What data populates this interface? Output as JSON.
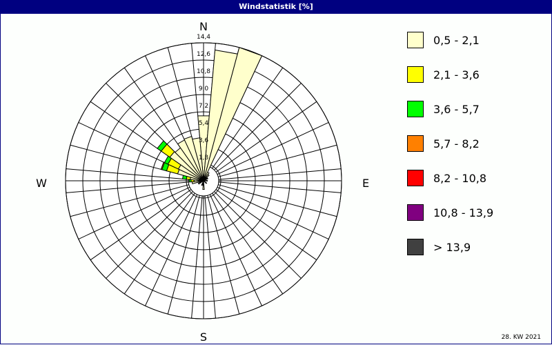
{
  "chart_data": {
    "type": "wind-rose",
    "title": "Windstatistik [%]",
    "footer": "28. KW 2021",
    "directions": [
      "N",
      "E",
      "S",
      "W"
    ],
    "radial_ticks": [
      "1,8",
      "3,6",
      "5,4",
      "7,2",
      "9,0",
      "10,8",
      "12,6",
      "14,4"
    ],
    "rmax": 14.4,
    "sector_width_deg": 10,
    "legend": [
      {
        "label": "0,5 - 2,1",
        "color": "#ffffcc"
      },
      {
        "label": "2,1 - 3,6",
        "color": "#ffff00"
      },
      {
        "label": "3,6 - 5,7",
        "color": "#00ff00"
      },
      {
        "label": "5,7 - 8,2",
        "color": "#ff8000"
      },
      {
        "label": "8,2 - 10,8",
        "color": "#ff0000"
      },
      {
        "label": "10,8 - 13,9",
        "color": "#800080"
      },
      {
        "label": " > 13,9",
        "color": "#404040"
      }
    ],
    "sectors": [
      {
        "dir": 0,
        "values": [
          6.8,
          0,
          0,
          0,
          0,
          0,
          0
        ]
      },
      {
        "dir": 10,
        "values": [
          13.7,
          0,
          0,
          0,
          0,
          0,
          0
        ]
      },
      {
        "dir": 20,
        "values": [
          14.4,
          0,
          0,
          0,
          0,
          0,
          0
        ]
      },
      {
        "dir": 30,
        "values": [
          1.0,
          0,
          0,
          0,
          0,
          0,
          0
        ]
      },
      {
        "dir": 40,
        "values": [
          0.8,
          0,
          0,
          0,
          0,
          0,
          0
        ]
      },
      {
        "dir": 60,
        "values": [
          0.5,
          0,
          0,
          0,
          0,
          0,
          0
        ]
      },
      {
        "dir": 90,
        "values": [
          0.4,
          0,
          0,
          0,
          0,
          0,
          0
        ]
      },
      {
        "dir": 130,
        "values": [
          0.4,
          0,
          0,
          0,
          0,
          0,
          0
        ]
      },
      {
        "dir": 180,
        "values": [
          0.9,
          0,
          0,
          0,
          0,
          0,
          0
        ]
      },
      {
        "dir": 200,
        "values": [
          0.5,
          0,
          0,
          0,
          0,
          0,
          0
        ]
      },
      {
        "dir": 240,
        "values": [
          0.6,
          0,
          0,
          0,
          0,
          0,
          0
        ]
      },
      {
        "dir": 260,
        "values": [
          1.2,
          0,
          0,
          0,
          0,
          0,
          0
        ]
      },
      {
        "dir": 270,
        "values": [
          1.0,
          0.3,
          0.2,
          0,
          0,
          0,
          0
        ]
      },
      {
        "dir": 280,
        "values": [
          1.4,
          0.4,
          0.4,
          0,
          0,
          0,
          0
        ]
      },
      {
        "dir": 290,
        "values": [
          2.8,
          1.2,
          0.5,
          0.1,
          0,
          0,
          0
        ]
      },
      {
        "dir": 300,
        "values": [
          2.9,
          1.2,
          0.4,
          0,
          0,
          0,
          0
        ]
      },
      {
        "dir": 310,
        "values": [
          4.3,
          1.1,
          0.5,
          0,
          0,
          0,
          0
        ]
      },
      {
        "dir": 320,
        "values": [
          4.2,
          0,
          0,
          0,
          0,
          0,
          0
        ]
      },
      {
        "dir": 330,
        "values": [
          4.7,
          0,
          0,
          0,
          0,
          0,
          0
        ]
      },
      {
        "dir": 340,
        "values": [
          4.8,
          0,
          0,
          0,
          0,
          0,
          0
        ]
      },
      {
        "dir": 350,
        "values": [
          4.5,
          0,
          0,
          0,
          0,
          0,
          0
        ]
      }
    ]
  }
}
